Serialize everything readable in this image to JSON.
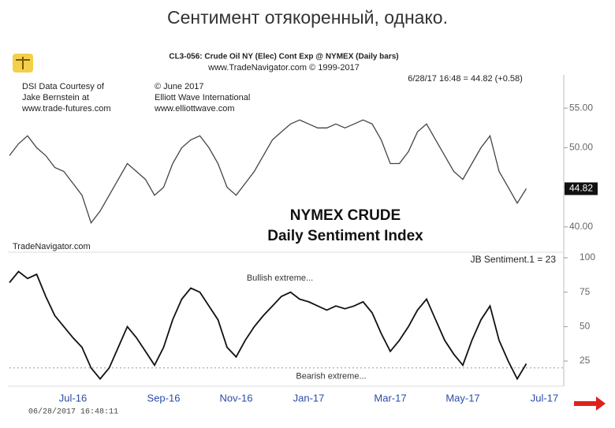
{
  "heading": "Сентимент отякоренный, однако.",
  "chart_data": {
    "type": "line",
    "title": "NYMEX CRUDE",
    "subtitle": "Daily Sentiment Index",
    "notes": [
      "CL3-056:  Crude Oil NY (Elec) Cont Exp @ NYMEX  (Daily bars)",
      "www.TradeNavigator.com © 1999-2017",
      "6/28/17 16:48 = 44.82 (+0.58)",
      "DSI Data Courtesy of",
      "Jake Bernstein at",
      "www.trade-futures.com",
      "© June 2017",
      "Elliott Wave International",
      "www.elliottwave.com",
      "TradeNavigator.com",
      "JB Sentiment.1 = 23",
      "06/28/2017 16:48:11"
    ],
    "categories": [
      null,
      null,
      null,
      null,
      null,
      null,
      null,
      "Jul-16",
      null,
      null,
      null,
      null,
      null,
      null,
      null,
      null,
      null,
      "Sep-16",
      null,
      null,
      null,
      null,
      null,
      null,
      null,
      "Nov-16",
      null,
      null,
      null,
      null,
      null,
      null,
      null,
      "Jan-17",
      null,
      null,
      null,
      null,
      null,
      null,
      null,
      null,
      "Mar-17",
      null,
      null,
      null,
      null,
      null,
      null,
      null,
      "May-17",
      null,
      null,
      null,
      null,
      null,
      null,
      null,
      null,
      "Jul-17"
    ],
    "series": [
      {
        "name": "Crude Oil NY",
        "color": "#444444",
        "values": [
          49,
          50.5,
          51.5,
          50,
          49,
          47.5,
          47,
          45.5,
          44,
          40.5,
          42,
          44,
          46,
          48,
          47,
          46,
          44,
          45,
          48,
          50,
          51,
          51.5,
          50,
          48,
          45,
          44,
          45.5,
          47,
          49,
          51,
          52,
          53,
          53.5,
          53,
          52.5,
          52.5,
          53,
          52.5,
          53,
          53.5,
          53,
          51,
          48,
          48,
          49.5,
          52,
          53,
          51,
          49,
          47,
          46,
          48,
          50,
          51.5,
          47,
          45,
          43,
          44.82,
          null,
          null
        ]
      },
      {
        "name": "JB Sentiment",
        "color": "#111111",
        "axis": "y2",
        "values": [
          82,
          90,
          85,
          88,
          72,
          58,
          50,
          42,
          35,
          20,
          12,
          20,
          35,
          50,
          42,
          32,
          22,
          35,
          55,
          70,
          78,
          75,
          65,
          55,
          35,
          28,
          40,
          50,
          58,
          65,
          72,
          75,
          70,
          68,
          65,
          62,
          65,
          63,
          65,
          68,
          60,
          45,
          32,
          40,
          50,
          62,
          70,
          55,
          40,
          30,
          22,
          40,
          55,
          65,
          40,
          25,
          12,
          23,
          null,
          null
        ]
      }
    ],
    "ylim": [
      36.8,
      58.7
    ],
    "yticks": [
      {
        "value": 55,
        "label": "55.00"
      },
      {
        "value": 50,
        "label": "50.00"
      },
      {
        "value": 45,
        "label": "45.00"
      },
      {
        "value": 40,
        "label": "40.00"
      }
    ],
    "y2lim": [
      6.7,
      102.9
    ],
    "y2ticks": [
      100,
      75,
      50,
      25
    ],
    "annotations": [
      {
        "text": "Bullish extreme...",
        "value": 85
      },
      {
        "text": "Bearish extreme...",
        "value": 20
      }
    ]
  }
}
